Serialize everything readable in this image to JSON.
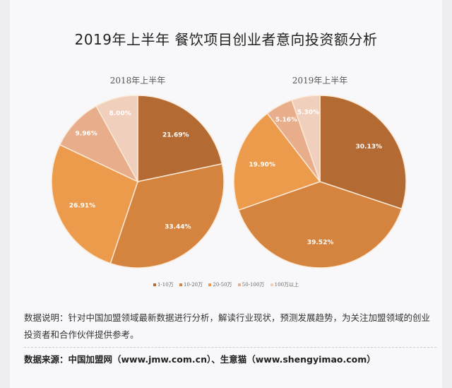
{
  "title": "2019年上半年  餐饮项目创业者意向投资额分析",
  "chart_data": [
    {
      "type": "pie",
      "title": "2018年上半年",
      "categories": [
        "1-10万",
        "10-20万",
        "20-50万",
        "50-100万",
        "100万以上"
      ],
      "values": [
        21.69,
        33.44,
        26.91,
        9.96,
        8.0
      ],
      "labels": [
        "21.69%",
        "33.44%",
        "26.91%",
        "9.96%",
        "8.00%"
      ]
    },
    {
      "type": "pie",
      "title": "2019年上半年",
      "categories": [
        "1-10万",
        "10-20万",
        "20-50万",
        "50-100万",
        "100万以上"
      ],
      "values": [
        30.13,
        39.52,
        19.9,
        5.16,
        5.3
      ],
      "labels": [
        "30.13%",
        "39.52%",
        "19.90%",
        "5.16%",
        "5.30%"
      ]
    }
  ],
  "legend": {
    "placement": "bottom",
    "items": [
      "1-10万",
      "10-20万",
      "20-50万",
      "50-100万",
      "100万以上"
    ],
    "colors": [
      "#b36a33",
      "#d4843f",
      "#ec9a4c",
      "#e8ad8a",
      "#f1cfbd"
    ]
  },
  "description": "数据说明：针对中国加盟领域最新数据进行分析，解读行业现状，预测发展趋势，为关注加盟领域的创业投资者和合作伙伴提供参考。",
  "source": "数据来源：中国加盟网（www.jmw.com.cn）、生意猫（www.shengyimao.com）"
}
